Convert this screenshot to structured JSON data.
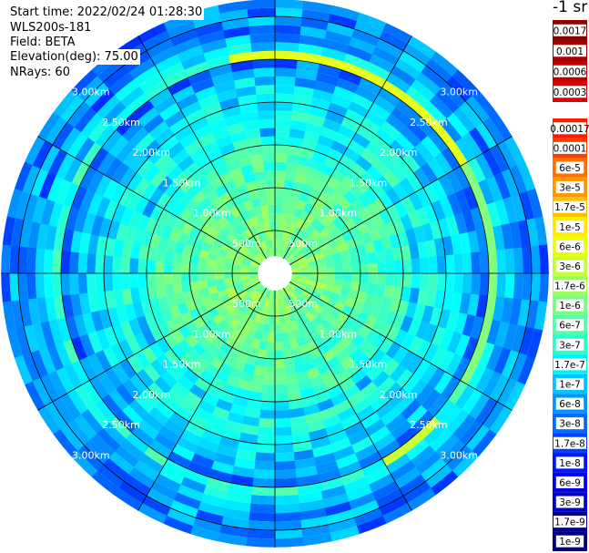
{
  "header": {
    "start_time": "Start time: 2022/02/24 01:28:30",
    "instrument": "WLS200s-181",
    "field": "Field: BETA",
    "elevation": "Elevation(deg): 75.00",
    "nrays": "NRays: 60"
  },
  "colorbar": {
    "title": "-1 sr",
    "entries": [
      {
        "label": "0.0017",
        "color": "#8b0000",
        "text_color": "#ffffff"
      },
      {
        "label": "0.001",
        "color": "#a30000",
        "text_color": "#ffffff"
      },
      {
        "label": "0.0006",
        "color": "#c00000",
        "text_color": "#ffffff"
      },
      {
        "label": "0.0003",
        "color": "#e00000",
        "text_color": "#ffffff"
      },
      {
        "label": "0.00017",
        "color": "#ff1a00",
        "text_color": "#000000"
      },
      {
        "label": "0.0001",
        "color": "#ff4000",
        "text_color": "#000000"
      },
      {
        "label": "6e-5",
        "color": "#ff7000",
        "text_color": "#000000"
      },
      {
        "label": "3e-5",
        "color": "#ff9800",
        "text_color": "#000000"
      },
      {
        "label": "1.7e-5",
        "color": "#ffbf00",
        "text_color": "#000000"
      },
      {
        "label": "1e-5",
        "color": "#ffea00",
        "text_color": "#000000"
      },
      {
        "label": "6e-6",
        "color": "#eaff0d",
        "text_color": "#000000"
      },
      {
        "label": "3e-6",
        "color": "#c4ff33",
        "text_color": "#000000"
      },
      {
        "label": "1.7e-6",
        "color": "#9dff5a",
        "text_color": "#000000"
      },
      {
        "label": "1e-6",
        "color": "#76ff80",
        "text_color": "#000000"
      },
      {
        "label": "6e-7",
        "color": "#50ffa7",
        "text_color": "#000000"
      },
      {
        "label": "3e-7",
        "color": "#29ffcd",
        "text_color": "#000000"
      },
      {
        "label": "1.7e-7",
        "color": "#00f0ff",
        "text_color": "#000000"
      },
      {
        "label": "1e-7",
        "color": "#00c4ff",
        "text_color": "#000000"
      },
      {
        "label": "6e-8",
        "color": "#0098ff",
        "text_color": "#000000"
      },
      {
        "label": "3e-8",
        "color": "#006cff",
        "text_color": "#000000"
      },
      {
        "label": "1.7e-8",
        "color": "#0040ff",
        "text_color": "#ffffff"
      },
      {
        "label": "1e-8",
        "color": "#0014ff",
        "text_color": "#ffffff"
      },
      {
        "label": "6e-9",
        "color": "#0000e8",
        "text_color": "#ffffff"
      },
      {
        "label": "3e-9",
        "color": "#0000c4",
        "text_color": "#ffffff"
      },
      {
        "label": "1.7e-9",
        "color": "#00009f",
        "text_color": "#ffffff"
      },
      {
        "label": "1e-9",
        "color": "#00007a",
        "text_color": "#ffffff"
      }
    ]
  },
  "chart_data": {
    "type": "heatmap",
    "plot_kind": "polar PPI",
    "field": "BETA",
    "units": "-1 sr",
    "color_scale": "log",
    "range_ring_labels": [
      "500m",
      "1.00km",
      "1.50km",
      "2.00km",
      "2.50km",
      "3.00km"
    ],
    "range_ring_values_km": [
      0.5,
      1.0,
      1.5,
      2.0,
      2.5,
      3.0
    ],
    "radial_lines_deg": [
      0,
      30,
      60,
      90,
      120,
      150,
      180,
      210,
      240,
      270,
      300,
      330
    ],
    "range_ring_step_km": 0.5,
    "max_range_km": 3.2,
    "n_rays": 60,
    "range_gates": [
      {
        "range_km": 0.05,
        "beta": 0.0
      },
      {
        "range_km": 0.15,
        "beta": 0.0
      },
      {
        "range_km": 0.25,
        "beta": 1.5e-06
      },
      {
        "range_km": 0.35,
        "beta": 1.4e-06
      },
      {
        "range_km": 0.45,
        "beta": 1.3e-06
      },
      {
        "range_km": 0.55,
        "beta": 1.2e-06
      },
      {
        "range_km": 0.65,
        "beta": 1e-06
      },
      {
        "range_km": 0.75,
        "beta": 9e-07
      },
      {
        "range_km": 0.85,
        "beta": 8e-07
      },
      {
        "range_km": 0.95,
        "beta": 7e-07
      },
      {
        "range_km": 1.05,
        "beta": 6e-07
      },
      {
        "range_km": 1.15,
        "beta": 5.5e-07
      },
      {
        "range_km": 1.25,
        "beta": 5e-07
      },
      {
        "range_km": 1.35,
        "beta": 4.5e-07
      },
      {
        "range_km": 1.45,
        "beta": 3.5e-07
      },
      {
        "range_km": 1.55,
        "beta": 2.2e-07
      },
      {
        "range_km": 1.65,
        "beta": 9e-08
      },
      {
        "range_km": 1.75,
        "beta": 2.2e-07
      },
      {
        "range_km": 1.85,
        "beta": 1.6e-07
      },
      {
        "range_km": 1.95,
        "beta": 1.3e-07
      },
      {
        "range_km": 2.05,
        "beta": 1.1e-07
      },
      {
        "range_km": 2.15,
        "beta": 9e-08
      },
      {
        "range_km": 2.25,
        "beta": 7e-08
      },
      {
        "range_km": 2.35,
        "beta": 5e-08
      },
      {
        "range_km": 2.45,
        "beta": 2.5e-08
      },
      {
        "range_km": 2.55,
        "beta": 2.5e-07
      },
      {
        "range_km": 2.65,
        "beta": 9e-08
      },
      {
        "range_km": 2.75,
        "beta": 6e-08
      },
      {
        "range_km": 2.85,
        "beta": 3e-08
      },
      {
        "range_km": 2.95,
        "beta": 4e-08
      },
      {
        "range_km": 3.05,
        "beta": 3.5e-08
      },
      {
        "range_km": 3.15,
        "beta": 3e-08
      }
    ],
    "enhanced_sectors": [
      {
        "azimuth_deg": [
          -10,
          60
        ],
        "range_km": [
          2.5,
          2.6
        ],
        "beta": 8e-06
      },
      {
        "azimuth_deg": [
          60,
          120
        ],
        "range_km": [
          2.5,
          2.6
        ],
        "beta": 1.5e-06
      },
      {
        "azimuth_deg": [
          130,
          150
        ],
        "range_km": [
          2.5,
          2.6
        ],
        "beta": 5e-06
      }
    ]
  }
}
